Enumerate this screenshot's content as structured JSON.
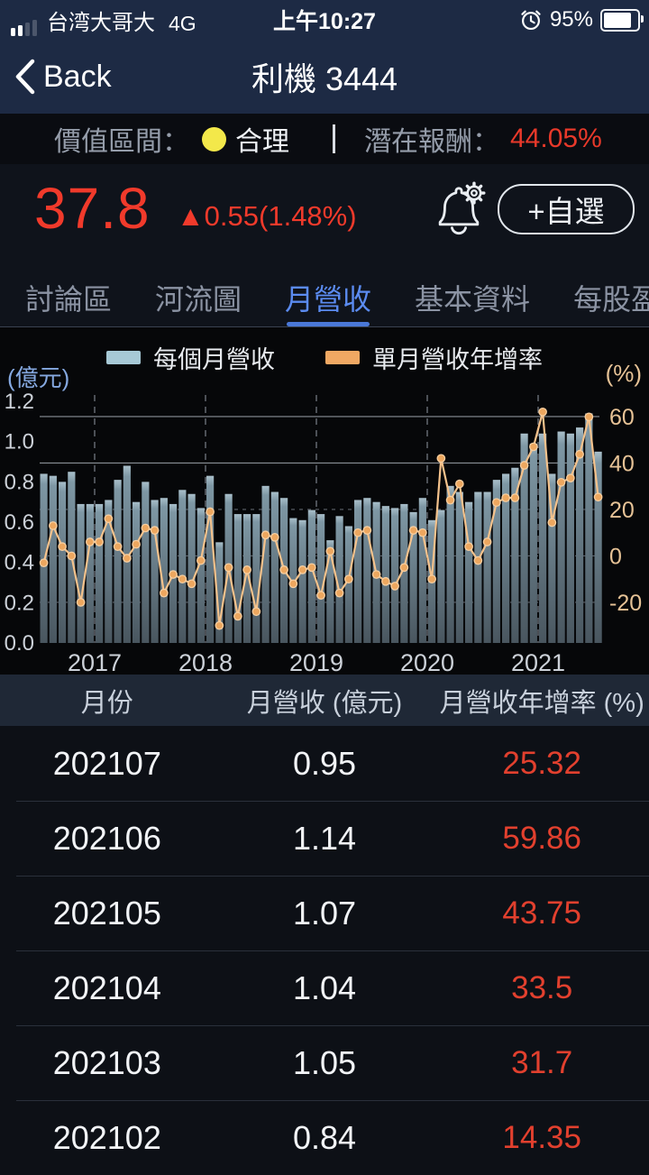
{
  "status_bar": {
    "carrier": "台湾大哥大",
    "network": "4G",
    "time": "上午10:27",
    "battery_pct": "95%"
  },
  "nav": {
    "back_label": "Back",
    "title": "利機 3444"
  },
  "value_band": {
    "range_label": "價值區間：",
    "range_value": "合理",
    "return_label": "潛在報酬：",
    "return_value": "44.05%",
    "dot_color": "#f3e84a",
    "return_color": "#e8392a"
  },
  "quote": {
    "price": "37.8",
    "change": "▲0.55(1.48%)",
    "price_color": "#f13a2b",
    "watchlist_button": "+自選"
  },
  "tabs": [
    {
      "label": "討論區",
      "active": false
    },
    {
      "label": "河流圖",
      "active": false
    },
    {
      "label": "月營收",
      "active": true
    },
    {
      "label": "基本資料",
      "active": false
    },
    {
      "label": "每股盈餘",
      "active": false
    }
  ],
  "chart_data": {
    "type": "bar+line",
    "legend": [
      {
        "label": "每個月營收",
        "color": "#a7c9d6",
        "kind": "bar"
      },
      {
        "label": "單月營收年增率",
        "color": "#f0a863",
        "kind": "line"
      }
    ],
    "left_axis": {
      "unit": "(億元)",
      "ticks": [
        0.0,
        0.2,
        0.4,
        0.6,
        0.8,
        1.0,
        1.2
      ],
      "range": [
        0,
        1.245
      ]
    },
    "right_axis": {
      "unit": "(%)",
      "ticks": [
        60,
        40,
        20,
        0,
        -20
      ],
      "solid_ticks": [
        60,
        40
      ],
      "range": [
        -37.5,
        70.5
      ]
    },
    "x_year_labels": [
      "2017",
      "2018",
      "2019",
      "2020",
      "2021"
    ],
    "months": [
      "2016-07",
      "2016-08",
      "2016-09",
      "2016-10",
      "2016-11",
      "2016-12",
      "2017-01",
      "2017-02",
      "2017-03",
      "2017-04",
      "2017-05",
      "2017-06",
      "2017-07",
      "2017-08",
      "2017-09",
      "2017-10",
      "2017-11",
      "2017-12",
      "2018-01",
      "2018-02",
      "2018-03",
      "2018-04",
      "2018-05",
      "2018-06",
      "2018-07",
      "2018-08",
      "2018-09",
      "2018-10",
      "2018-11",
      "2018-12",
      "2019-01",
      "2019-02",
      "2019-03",
      "2019-04",
      "2019-05",
      "2019-06",
      "2019-07",
      "2019-08",
      "2019-09",
      "2019-10",
      "2019-11",
      "2019-12",
      "2020-01",
      "2020-02",
      "2020-03",
      "2020-04",
      "2020-05",
      "2020-06",
      "2020-07",
      "2020-08",
      "2020-09",
      "2020-10",
      "2020-11",
      "2020-12",
      "2021-01",
      "2021-02",
      "2021-03",
      "2021-04",
      "2021-05",
      "2021-06",
      "2021-07"
    ],
    "revenue": [
      0.84,
      0.83,
      0.8,
      0.85,
      0.69,
      0.69,
      0.69,
      0.71,
      0.81,
      0.88,
      0.7,
      0.8,
      0.71,
      0.72,
      0.69,
      0.76,
      0.74,
      0.67,
      0.83,
      0.5,
      0.74,
      0.64,
      0.64,
      0.64,
      0.78,
      0.75,
      0.72,
      0.62,
      0.61,
      0.66,
      0.64,
      0.51,
      0.63,
      0.58,
      0.71,
      0.72,
      0.7,
      0.68,
      0.67,
      0.69,
      0.65,
      0.72,
      0.61,
      0.66,
      0.78,
      0.75,
      0.7,
      0.75,
      0.75,
      0.81,
      0.84,
      0.87,
      1.04,
      0.99,
      1.04,
      0.84,
      1.05,
      1.04,
      1.07,
      1.14,
      0.95
    ],
    "yoy": [
      -3,
      13,
      4,
      0,
      -20,
      6,
      6,
      16,
      4,
      -1,
      5,
      12,
      11,
      -16,
      -8,
      -10,
      -12,
      -2,
      19,
      -30,
      -5,
      -26,
      -6,
      -24,
      9,
      8,
      -6,
      -12,
      -6,
      -5,
      -17,
      2,
      -16,
      -10,
      10,
      11,
      -8,
      -11,
      -13,
      -5,
      11,
      10,
      -10,
      42,
      24,
      31,
      4,
      -2,
      6,
      23,
      25,
      25,
      39,
      47,
      62,
      14.35,
      31.7,
      33.5,
      43.75,
      59.86,
      25.32
    ],
    "colors": {
      "bar_top": "#a9bfca",
      "bar_mid": "#7e97a4",
      "bar_bottom": "#49565f",
      "line": "#f4c28c",
      "dot": "#eda75f",
      "grid_solid": "#8b9097",
      "grid_dashed": "#5d626a",
      "left_tick": "#ccd1d8",
      "right_tick": "#e6c296",
      "year_label": "#ccd1d8"
    }
  },
  "table": {
    "headers": [
      "月份",
      "月營收 (億元)",
      "月營收年增率 (%)"
    ],
    "rows": [
      {
        "month": "202107",
        "revenue": "0.95",
        "yoy": "25.32"
      },
      {
        "month": "202106",
        "revenue": "1.14",
        "yoy": "59.86"
      },
      {
        "month": "202105",
        "revenue": "1.07",
        "yoy": "43.75"
      },
      {
        "month": "202104",
        "revenue": "1.04",
        "yoy": "33.5"
      },
      {
        "month": "202103",
        "revenue": "1.05",
        "yoy": "31.7"
      },
      {
        "month": "202102",
        "revenue": "0.84",
        "yoy": "14.35"
      }
    ]
  }
}
